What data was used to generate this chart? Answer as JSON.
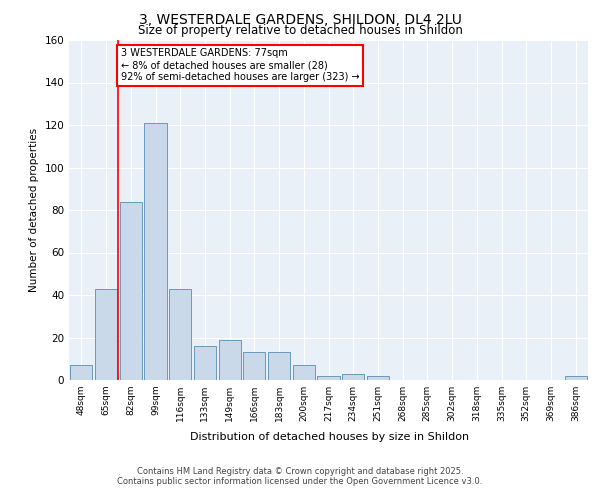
{
  "title1": "3, WESTERDALE GARDENS, SHILDON, DL4 2LU",
  "title2": "Size of property relative to detached houses in Shildon",
  "xlabel": "Distribution of detached houses by size in Shildon",
  "ylabel": "Number of detached properties",
  "bar_labels": [
    "48sqm",
    "65sqm",
    "82sqm",
    "99sqm",
    "116sqm",
    "133sqm",
    "149sqm",
    "166sqm",
    "183sqm",
    "200sqm",
    "217sqm",
    "234sqm",
    "251sqm",
    "268sqm",
    "285sqm",
    "302sqm",
    "318sqm",
    "335sqm",
    "352sqm",
    "369sqm",
    "386sqm"
  ],
  "bar_values": [
    7,
    43,
    84,
    121,
    43,
    16,
    19,
    13,
    13,
    7,
    2,
    3,
    2,
    0,
    0,
    0,
    0,
    0,
    0,
    0,
    2
  ],
  "bar_color": "#c9d9ea",
  "bar_edge_color": "#6699bb",
  "annotation_text": "3 WESTERDALE GARDENS: 77sqm\n← 8% of detached houses are smaller (28)\n92% of semi-detached houses are larger (323) →",
  "ylim": [
    0,
    160
  ],
  "yticks": [
    0,
    20,
    40,
    60,
    80,
    100,
    120,
    140,
    160
  ],
  "plot_bg_color": "#eaf0f8",
  "footer1": "Contains HM Land Registry data © Crown copyright and database right 2025.",
  "footer2": "Contains public sector information licensed under the Open Government Licence v3.0."
}
